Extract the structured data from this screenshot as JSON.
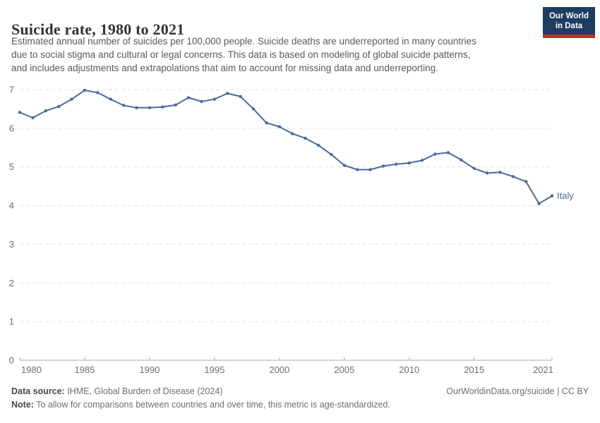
{
  "header": {
    "title": "Suicide rate, 1980 to 2021",
    "subtitle_lines": [
      "Estimated annual number of suicides per 100,000 people. Suicide deaths are underreported in many countries",
      "due to social stigma and cultural or legal concerns. This data is based on modeling of global suicide patterns,",
      "and includes adjustments and extrapolations that aim to account for missing data and underreporting."
    ]
  },
  "logo": {
    "line1": "Our World",
    "line2": "in Data",
    "bg_color": "#1d3d63",
    "accent_color": "#d42b21"
  },
  "chart_data": {
    "type": "line",
    "title": "Suicide rate, 1980 to 2021",
    "xlabel": "",
    "ylabel": "",
    "xlim": [
      1980,
      2021
    ],
    "ylim": [
      0,
      7
    ],
    "xticks": [
      1980,
      1985,
      1990,
      1995,
      2000,
      2005,
      2010,
      2015,
      2021
    ],
    "yticks": [
      0,
      1,
      2,
      3,
      4,
      5,
      6,
      7
    ],
    "grid": "horizontal-dashed",
    "legend_position": "end-of-line-label",
    "x": [
      1980,
      1981,
      1982,
      1983,
      1984,
      1985,
      1986,
      1987,
      1988,
      1989,
      1990,
      1991,
      1992,
      1993,
      1994,
      1995,
      1996,
      1997,
      1998,
      1999,
      2000,
      2001,
      2002,
      2003,
      2004,
      2005,
      2006,
      2007,
      2008,
      2009,
      2010,
      2011,
      2012,
      2013,
      2014,
      2015,
      2016,
      2017,
      2018,
      2019,
      2020,
      2021
    ],
    "series": [
      {
        "name": "Italy",
        "color": "#4c6a9c",
        "values": [
          6.41,
          6.27,
          6.45,
          6.56,
          6.75,
          6.98,
          6.92,
          6.75,
          6.59,
          6.53,
          6.53,
          6.55,
          6.6,
          6.79,
          6.69,
          6.75,
          6.9,
          6.82,
          6.5,
          6.14,
          6.04,
          5.86,
          5.74,
          5.56,
          5.32,
          5.04,
          4.93,
          4.93,
          5.02,
          5.07,
          5.1,
          5.17,
          5.33,
          5.37,
          5.18,
          4.96,
          4.84,
          4.86,
          4.75,
          4.62,
          4.05,
          4.25
        ]
      }
    ],
    "colors": {
      "gridline": "#e2e2e2",
      "axis": "#a8a8a8",
      "tick_label": "#6e6e6e"
    }
  },
  "footer": {
    "data_source_label": "Data source:",
    "data_source_value": " IHME, Global Burden of Disease (2024)",
    "link": "OurWorldinData.org/suicide | CC BY",
    "note_label": "Note:",
    "note_value": " To allow for comparisons between countries and over time, this metric is age-standardized."
  }
}
